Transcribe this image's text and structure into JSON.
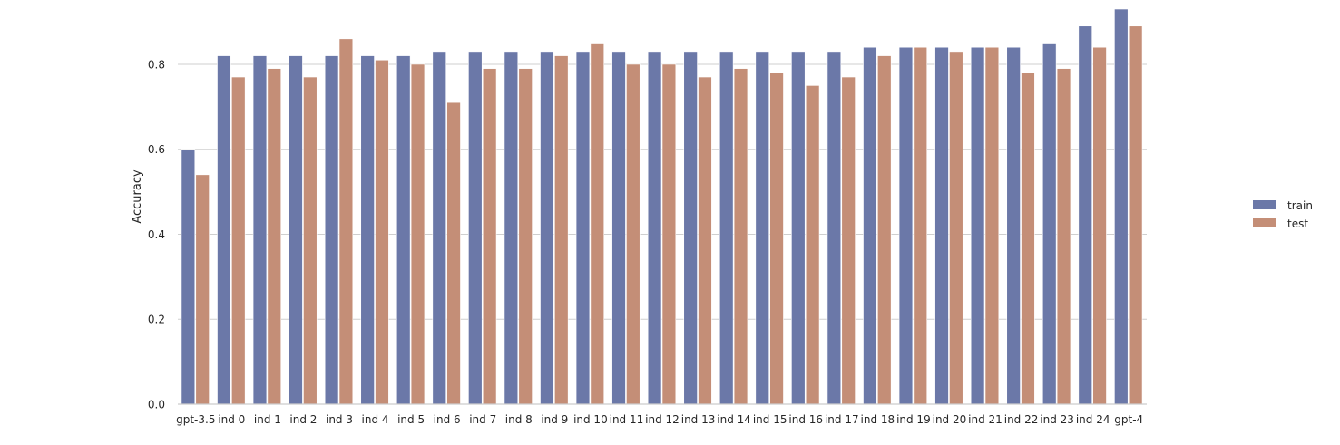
{
  "chart_data": {
    "type": "bar",
    "title": "",
    "xlabel": "",
    "ylabel": "Accuracy",
    "ylim": [
      0,
      0.93
    ],
    "yticks": [
      "0.0",
      "0.2",
      "0.4",
      "0.6",
      "0.8"
    ],
    "grid": "horizontal",
    "legend_placement": "center-right",
    "categories": [
      "gpt-3.5",
      "ind 0",
      "ind 1",
      "ind 2",
      "ind 3",
      "ind 4",
      "ind 5",
      "ind 6",
      "ind 7",
      "ind 8",
      "ind 9",
      "ind 10",
      "ind 11",
      "ind 12",
      "ind 13",
      "ind 14",
      "ind 15",
      "ind 16",
      "ind 17",
      "ind 18",
      "ind 19",
      "ind 20",
      "ind 21",
      "ind 22",
      "ind 23",
      "ind 24",
      "gpt-4"
    ],
    "series": [
      {
        "name": "train",
        "color": "#6b78a8",
        "values": [
          0.6,
          0.82,
          0.82,
          0.82,
          0.82,
          0.82,
          0.82,
          0.83,
          0.83,
          0.83,
          0.83,
          0.83,
          0.83,
          0.83,
          0.83,
          0.83,
          0.83,
          0.83,
          0.83,
          0.84,
          0.84,
          0.84,
          0.84,
          0.84,
          0.85,
          0.89,
          0.93
        ]
      },
      {
        "name": "test",
        "color": "#c48e77",
        "values": [
          0.54,
          0.77,
          0.79,
          0.77,
          0.86,
          0.81,
          0.8,
          0.71,
          0.79,
          0.79,
          0.82,
          0.85,
          0.8,
          0.8,
          0.77,
          0.79,
          0.78,
          0.75,
          0.77,
          0.82,
          0.84,
          0.83,
          0.84,
          0.78,
          0.79,
          0.84,
          0.89
        ]
      }
    ]
  }
}
